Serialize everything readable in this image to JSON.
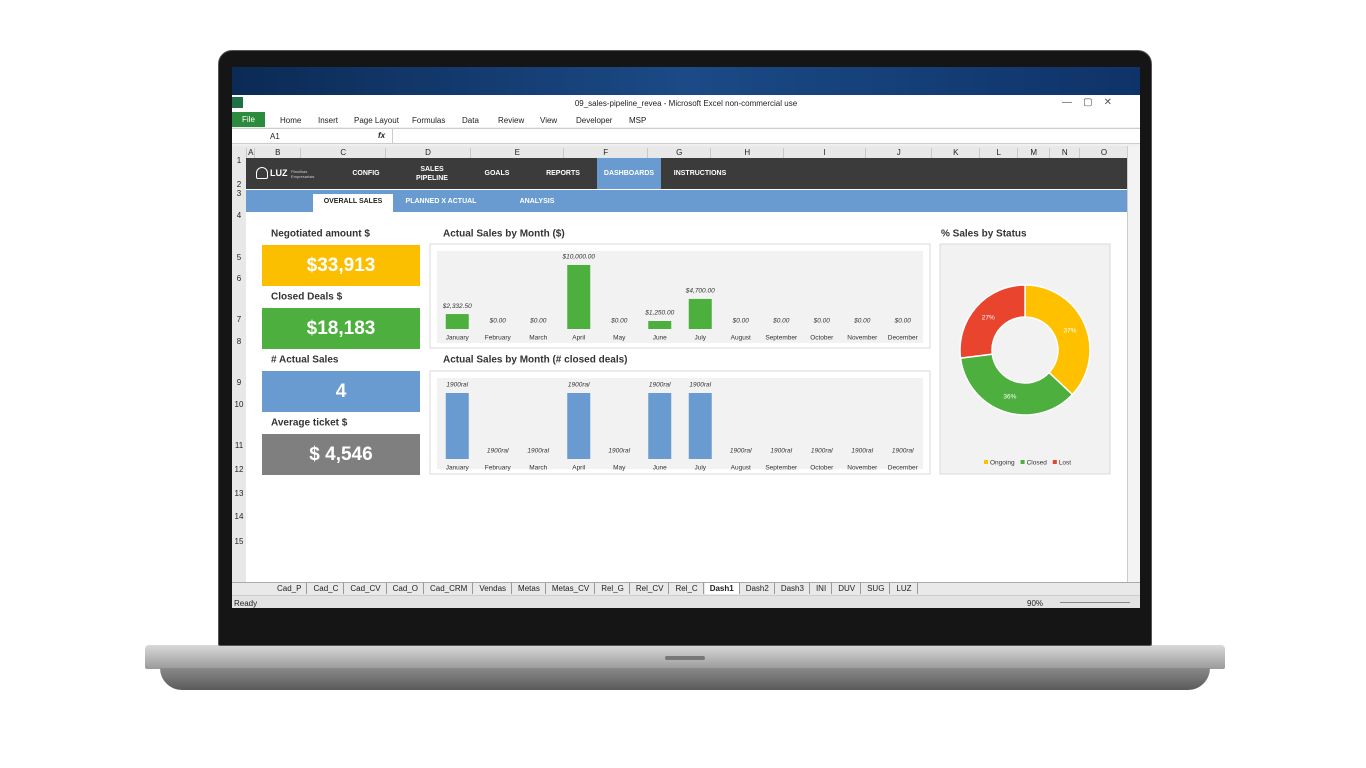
{
  "window": {
    "title": "09_sales-pipeline_revea - Microsoft Excel non-commercial use",
    "tabs": [
      "File",
      "Home",
      "Insert",
      "Page Layout",
      "Formulas",
      "Data",
      "Review",
      "View",
      "Developer",
      "MSP"
    ],
    "name_box": "A1",
    "formula_icon": "fx"
  },
  "columns": [
    "A",
    "B",
    "C",
    "D",
    "E",
    "F",
    "G",
    "H",
    "I",
    "J",
    "K",
    "L",
    "M",
    "N",
    "O"
  ],
  "rows": [
    1,
    2,
    3,
    4,
    5,
    6,
    7,
    8,
    9,
    10,
    11,
    12,
    13,
    14,
    15
  ],
  "nav": {
    "brand": "LUZ",
    "brand_sub": "Planilhas Empresariais",
    "items": [
      "CONFIG",
      "SALES PIPELINE",
      "GOALS",
      "REPORTS",
      "DASHBOARDS",
      "INSTRUCTIONS"
    ],
    "active": 4
  },
  "subtabs": {
    "items": [
      "OVERALL SALES",
      "PLANNED X ACTUAL",
      "ANALYSIS"
    ],
    "active": 0
  },
  "kpis": [
    {
      "label": "Negotiated amount $",
      "value": "$33,913",
      "color": "#fcbf00"
    },
    {
      "label": "Closed Deals $",
      "value": "$18,183",
      "color": "#4daf3d"
    },
    {
      "label": "# Actual Sales",
      "value": "4",
      "color": "#6a9bd0"
    },
    {
      "label": "Average ticket $",
      "value": "$ 4,546",
      "color": "#7f7f7f"
    }
  ],
  "chart_data": [
    {
      "type": "bar",
      "title": "Actual Sales by Month ($)",
      "categories": [
        "January",
        "February",
        "March",
        "April",
        "May",
        "June",
        "July",
        "August",
        "September",
        "October",
        "November",
        "December"
      ],
      "values": [
        2332.5,
        0,
        0,
        10000,
        0,
        1250,
        4700,
        0,
        0,
        0,
        0,
        0
      ],
      "value_labels": [
        "$2,332.50",
        "$0.00",
        "$0.00",
        "$10,000.00",
        "$0.00",
        "$1,250.00",
        "$4,700.00",
        "$0.00",
        "$0.00",
        "$0.00",
        "$0.00",
        "$0.00"
      ],
      "color": "#4daf3d"
    },
    {
      "type": "bar",
      "title": "Actual Sales by Month (# closed deals)",
      "categories": [
        "January",
        "February",
        "March",
        "April",
        "May",
        "June",
        "July",
        "August",
        "September",
        "October",
        "November",
        "December"
      ],
      "values": [
        1,
        0,
        0,
        1,
        0,
        1,
        1,
        0,
        0,
        0,
        0,
        0
      ],
      "value_labels": [
        "1900ral",
        "1900ral",
        "1900ral",
        "1900ral",
        "1900ral",
        "1900ral",
        "1900ral",
        "1900ral",
        "1900ral",
        "1900ral",
        "1900ral",
        "1900ral"
      ],
      "color": "#6a9bd0"
    },
    {
      "type": "donut",
      "title": "% Sales by Status",
      "categories": [
        "Ongoing",
        "Closed",
        "Lost"
      ],
      "values": [
        37,
        36,
        27
      ],
      "value_labels": [
        "37%",
        "36%",
        "27%"
      ],
      "colors": [
        "#ffc000",
        "#4daf3d",
        "#e8442e"
      ]
    }
  ],
  "sheet_tabs": {
    "items": [
      "Cad_P",
      "Cad_C",
      "Cad_CV",
      "Cad_O",
      "Cad_CRM",
      "Vendas",
      "Metas",
      "Metas_CV",
      "Rel_G",
      "Rel_CV",
      "Rel_C",
      "Dash1",
      "Dash2",
      "Dash3",
      "INI",
      "DUV",
      "SUG",
      "LUZ"
    ],
    "active": 11
  },
  "status": {
    "ready": "Ready",
    "zoom": "90%"
  }
}
